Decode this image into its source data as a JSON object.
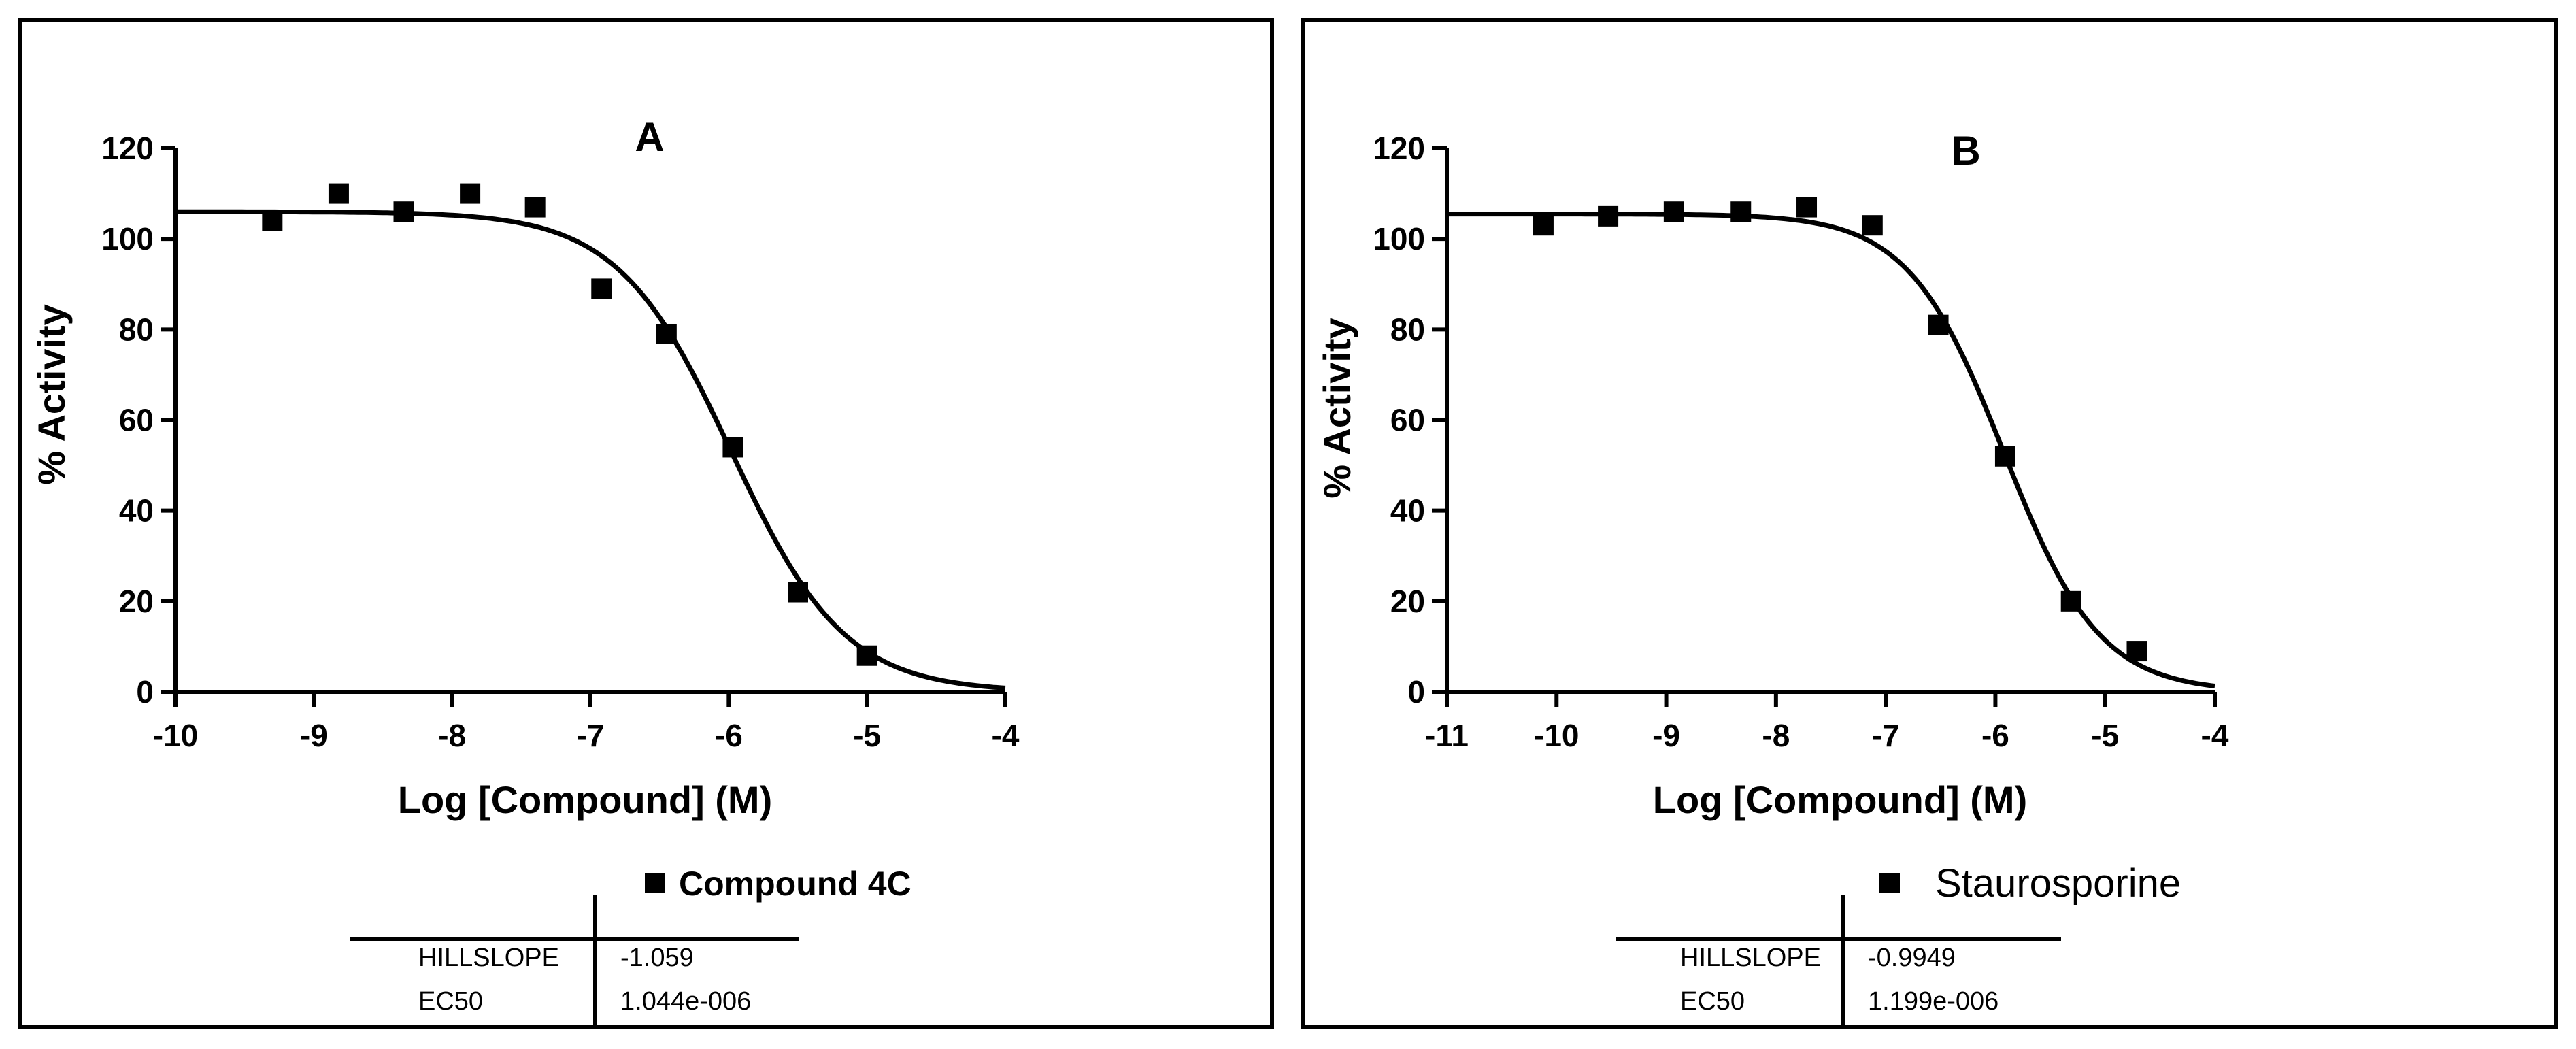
{
  "chart_data": [
    {
      "type": "scatter",
      "panel_label": "A",
      "title": "A",
      "xlabel": "Log [Compound] (M)",
      "ylabel": "% Activity",
      "xlim": [
        -10,
        -4
      ],
      "ylim": [
        0,
        120
      ],
      "xticks": [
        -10,
        -9,
        -8,
        -7,
        -6,
        -5,
        -4
      ],
      "yticks": [
        0,
        20,
        40,
        60,
        80,
        100,
        120
      ],
      "xtick_labels": [
        "-10",
        "-9",
        "-8",
        "-7",
        "-6",
        "-5",
        "-4"
      ],
      "ytick_labels": [
        "0",
        "20",
        "40",
        "60",
        "80",
        "100",
        "120"
      ],
      "series": [
        {
          "name": "Compound 4C",
          "x": [
            -9.3,
            -8.82,
            -8.35,
            -7.87,
            -7.4,
            -6.92,
            -6.45,
            -5.97,
            -5.5,
            -5.0
          ],
          "y": [
            104,
            110,
            106,
            110,
            107,
            89,
            79,
            54,
            22,
            8
          ]
        }
      ],
      "fit": {
        "top": 106,
        "bottom": 0,
        "log_ec50": -5.981,
        "hillslope": -1.059
      },
      "legend": {
        "name": "Compound 4C",
        "bold": true
      },
      "table": {
        "rows": [
          {
            "label": "HILLSLOPE",
            "value": "-1.059"
          },
          {
            "label": "EC50",
            "value": "1.044e-006"
          }
        ]
      }
    },
    {
      "type": "scatter",
      "panel_label": "B",
      "title": "B",
      "xlabel": "Log [Compound] (M)",
      "ylabel": "% Activity",
      "xlim": [
        -11,
        -4
      ],
      "ylim": [
        0,
        120
      ],
      "xticks": [
        -11,
        -10,
        -9,
        -8,
        -7,
        -6,
        -5,
        -4
      ],
      "yticks": [
        0,
        20,
        40,
        60,
        80,
        100,
        120
      ],
      "xtick_labels": [
        "-11",
        "-10",
        "-9",
        "-8",
        "-7",
        "-6",
        "-5",
        "-4"
      ],
      "ytick_labels": [
        "0",
        "20",
        "40",
        "60",
        "80",
        "100",
        "120"
      ],
      "series": [
        {
          "name": "Staurosporine",
          "x": [
            -10.12,
            -9.53,
            -8.93,
            -8.32,
            -7.72,
            -7.12,
            -6.52,
            -5.91,
            -5.31,
            -4.71
          ],
          "y": [
            103,
            105,
            106,
            106,
            107,
            103,
            81,
            52,
            20,
            9
          ]
        }
      ],
      "fit": {
        "top": 105.5,
        "bottom": 0,
        "log_ec50": -5.921,
        "hillslope": -0.9949
      },
      "legend": {
        "name": "Staurosporine",
        "bold": false
      },
      "table": {
        "rows": [
          {
            "label": "HILLSLOPE",
            "value": "-0.9949"
          },
          {
            "label": "EC50",
            "value": "1.199e-006"
          }
        ]
      }
    }
  ]
}
